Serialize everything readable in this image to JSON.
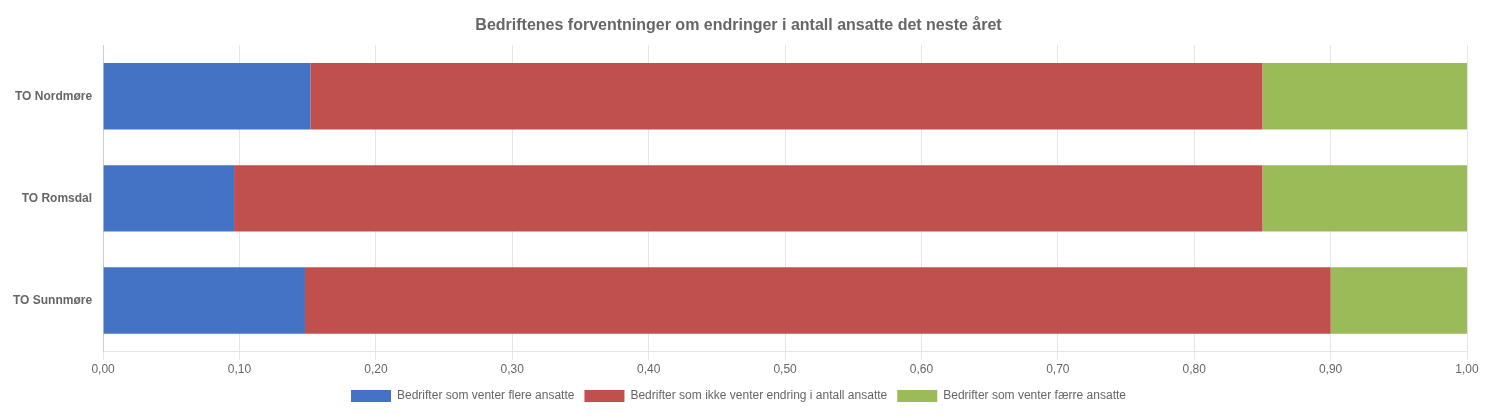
{
  "chart_data": {
    "type": "bar",
    "orientation": "horizontal",
    "stacked": true,
    "title": "Bedriftenes forventninger om endringer i antall ansatte det neste året",
    "categories": [
      "TO Nordmøre",
      "TO Romsdal",
      "TO Sunnmøre"
    ],
    "series": [
      {
        "name": "Bedrifter som venter flere ansatte",
        "color": "#4472C4",
        "values": [
          0.152,
          0.096,
          0.148
        ]
      },
      {
        "name": "Bedrifter som ikke venter endring i antall ansatte",
        "color": "#C0504D",
        "values": [
          0.698,
          0.754,
          0.752
        ]
      },
      {
        "name": "Bedrifter som venter færre ansatte",
        "color": "#9BBB59",
        "values": [
          0.15,
          0.15,
          0.1
        ]
      }
    ],
    "xlim": [
      0,
      1.0
    ],
    "xticks": [
      {
        "value": 0.0,
        "label": "0,00"
      },
      {
        "value": 0.1,
        "label": "0,10"
      },
      {
        "value": 0.2,
        "label": "0,20"
      },
      {
        "value": 0.3,
        "label": "0,30"
      },
      {
        "value": 0.4,
        "label": "0,40"
      },
      {
        "value": 0.5,
        "label": "0,50"
      },
      {
        "value": 0.6,
        "label": "0,60"
      },
      {
        "value": 0.7,
        "label": "0,70"
      },
      {
        "value": 0.8,
        "label": "0,80"
      },
      {
        "value": 0.9,
        "label": "0,90"
      },
      {
        "value": 1.0,
        "label": "1,00"
      }
    ],
    "grid": true,
    "legend": "bottom"
  }
}
